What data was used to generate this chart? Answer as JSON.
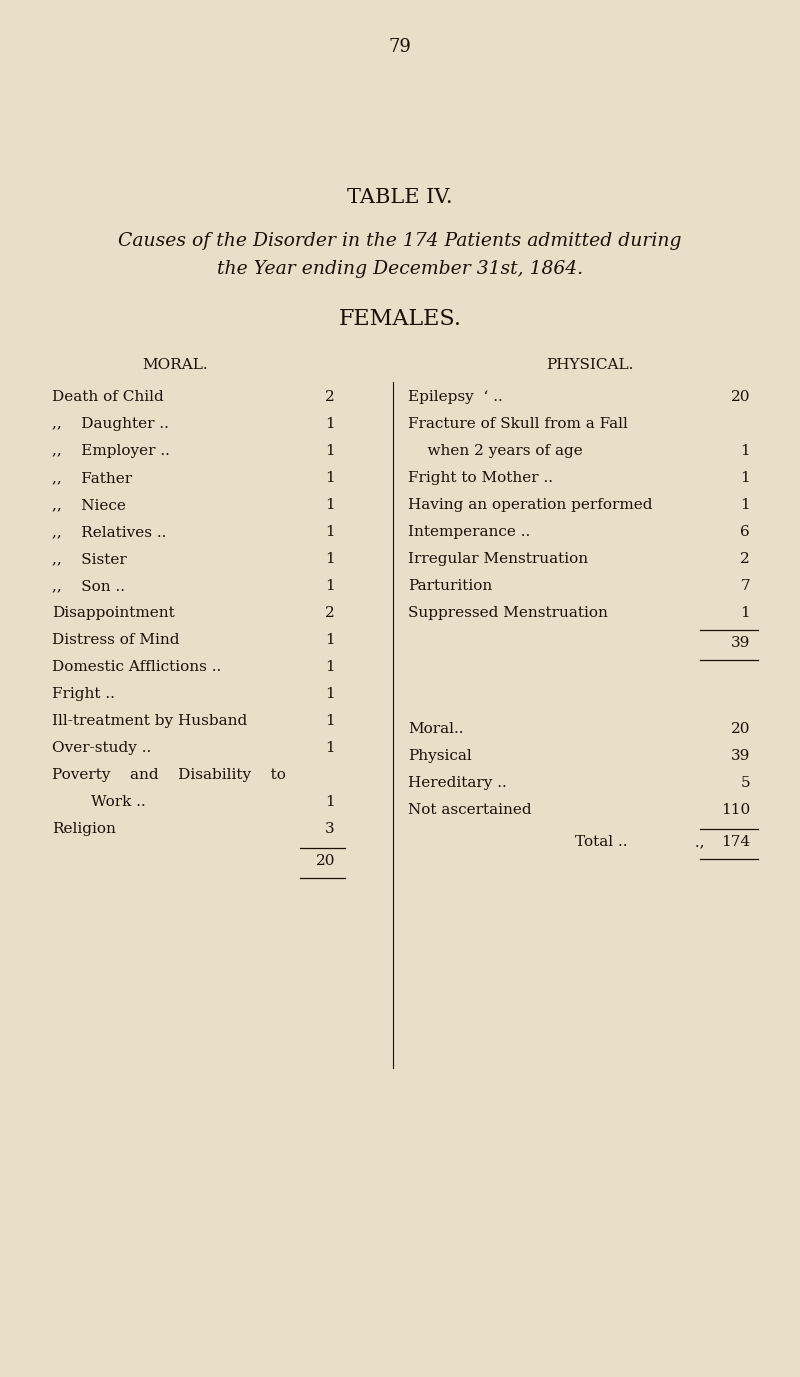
{
  "page_number": "79",
  "title": "TABLE IV.",
  "subtitle_line1": "Causes of the Disorder in the 174 Patients admitted during",
  "subtitle_line2": "the Year ending December 31st, 1864.",
  "section_header": "FEMALES.",
  "col_left_header": "MORAL.",
  "col_right_header": "PHYSICAL.",
  "bg_color": "#e8dfc8",
  "text_color": "#1a1008",
  "moral_rows": [
    {
      "label": "Death of Child",
      "indent": false,
      "dots": " ..",
      "value": "2"
    },
    {
      "label": ",,    Daughter ..",
      "indent": true,
      "dots": " ..",
      "value": "1"
    },
    {
      "label": ",,    Employer ..",
      "indent": true,
      "dots": " ..",
      "value": "1"
    },
    {
      "label": ",,    Father",
      "indent": true,
      "dots": " ..",
      "value": "1"
    },
    {
      "label": ",,    Niece",
      "indent": true,
      "dots": " ..",
      "value": "1"
    },
    {
      "label": ",,    Relatives ..",
      "indent": true,
      "dots": " ..",
      "value": "1"
    },
    {
      "label": ",,    Sister",
      "indent": true,
      "dots": " ..",
      "value": "1"
    },
    {
      "label": ",,    Son ..",
      "indent": true,
      "dots": " ..",
      "value": "1"
    },
    {
      "label": "Disappointment",
      "indent": false,
      "dots": " ..",
      "value": "2"
    },
    {
      "label": "Distress of Mind",
      "indent": false,
      "dots": " ..",
      "value": "1"
    },
    {
      "label": "Domestic Afflictions ..",
      "indent": false,
      "dots": " ..",
      "value": "1"
    },
    {
      "label": "Fright ..",
      "indent": false,
      "dots": " ..",
      "value": "1"
    },
    {
      "label": "Ill-treatment by Husband",
      "indent": false,
      "dots": " ..",
      "value": "1"
    },
    {
      "label": "Over-study ..",
      "indent": false,
      "dots": " ..",
      "value": "1"
    },
    {
      "label": "Poverty    and    Disability    to",
      "indent": false,
      "dots": "",
      "value": ""
    },
    {
      "label": "        Work ..",
      "indent": false,
      "dots": " ..",
      "value": "1"
    },
    {
      "label": "Religion",
      "indent": false,
      "dots": " ..",
      "value": "3"
    }
  ],
  "moral_total": "20",
  "physical_rows": [
    {
      "label": "Epilepsy  ‘ ..",
      "dots": " ..",
      "value": "20"
    },
    {
      "label": "Fracture of Skull from a Fall",
      "dots": "",
      "value": ""
    },
    {
      "label": "    when 2 years of age",
      "dots": " ..",
      "value": "1"
    },
    {
      "label": "Fright to Mother ..",
      "dots": " ..",
      "value": "1"
    },
    {
      "label": "Having an operation performed",
      "dots": "",
      "value": "1"
    },
    {
      "label": "Intemperance ..",
      "dots": " ..",
      "value": "6"
    },
    {
      "label": "Irregular Menstruation",
      "dots": " ..",
      "value": "2"
    },
    {
      "label": "Parturition",
      "dots": " ..",
      "value": "7"
    },
    {
      "label": "Suppressed Menstruation",
      "dots": " ..",
      "value": "1"
    }
  ],
  "physical_total": "39",
  "summary_rows": [
    {
      "label": "Moral..",
      "dots": " ..",
      "value": "20"
    },
    {
      "label": "Physical",
      "dots": " ..",
      "value": "39"
    },
    {
      "label": "Hereditary ..",
      "dots": " ..",
      "value": "5"
    },
    {
      "label": "Not ascertained",
      "dots": " ..",
      "value": "110"
    }
  ],
  "grand_total_label": "Total ..",
  "grand_total_dots": " .,",
  "grand_total_value": "174"
}
